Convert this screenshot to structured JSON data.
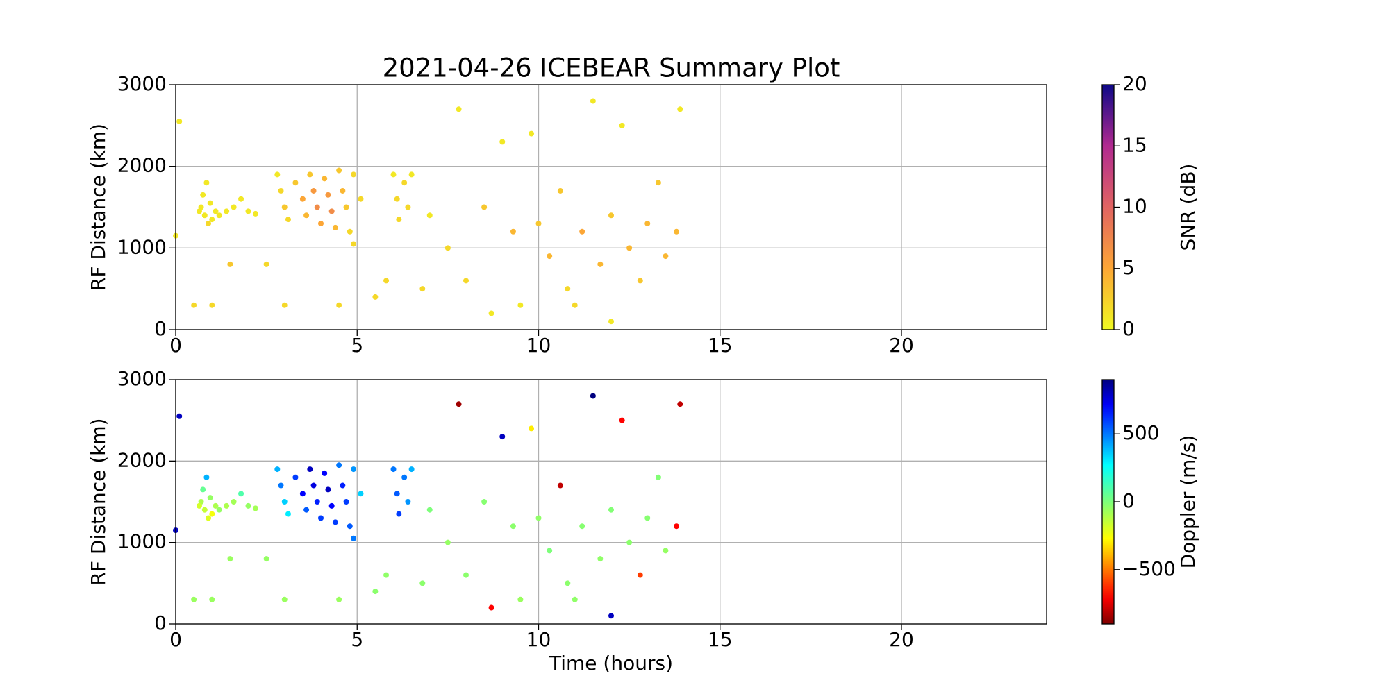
{
  "chart_data": [
    {
      "type": "scatter",
      "title": "2021-04-26 ICEBEAR Summary Plot",
      "ylabel": "RF Distance (km)",
      "xlim": [
        0,
        24
      ],
      "xticks": [
        0,
        5,
        10,
        15,
        20
      ],
      "ylim": [
        0,
        3000
      ],
      "yticks": [
        0,
        1000,
        2000,
        3000
      ],
      "grid": true,
      "x": [
        0.7,
        0.8,
        0.9,
        0.75,
        0.85,
        1.0,
        1.1,
        0.95,
        0.65,
        1.2,
        1.4,
        1.6,
        1.8,
        2.0,
        2.2,
        2.8,
        2.9,
        3.0,
        3.1,
        3.3,
        3.5,
        3.6,
        3.7,
        3.8,
        3.9,
        4.0,
        4.1,
        4.2,
        4.3,
        4.4,
        4.5,
        4.6,
        4.7,
        4.8,
        4.9,
        4.9,
        5.1,
        6.0,
        6.1,
        6.15,
        6.3,
        6.4,
        6.5,
        7.0,
        7.5,
        8.0,
        8.5,
        9.0,
        9.3,
        9.5,
        10.0,
        10.3,
        10.6,
        10.8,
        11.2,
        11.5,
        11.7,
        12.0,
        12.3,
        12.5,
        12.8,
        13.0,
        13.3,
        13.5,
        13.8,
        13.9,
        7.8,
        8.7,
        5.5,
        5.8,
        6.8,
        2.5,
        0.5,
        1.0,
        3.0,
        4.5,
        0.1,
        0.0,
        1.5,
        11.0,
        12.0,
        9.8
      ],
      "y": [
        1500,
        1400,
        1300,
        1650,
        1800,
        1350,
        1450,
        1550,
        1450,
        1400,
        1450,
        1500,
        1600,
        1450,
        1420,
        1900,
        1700,
        1500,
        1350,
        1800,
        1600,
        1400,
        1900,
        1700,
        1500,
        1300,
        1850,
        1650,
        1450,
        1250,
        1950,
        1700,
        1500,
        1200,
        1050,
        1900,
        1600,
        1900,
        1600,
        1350,
        1800,
        1500,
        1900,
        1400,
        1000,
        600,
        1500,
        2300,
        1200,
        300,
        1300,
        900,
        1700,
        500,
        1200,
        2800,
        800,
        1400,
        2500,
        1000,
        600,
        1300,
        1800,
        900,
        1200,
        2700,
        2700,
        200,
        400,
        600,
        500,
        800,
        300,
        300,
        300,
        300,
        2550,
        1150,
        800,
        300,
        100,
        2400
      ],
      "c": [
        1,
        1,
        2,
        1,
        1,
        1,
        1,
        1,
        1,
        1,
        1,
        1,
        1,
        1,
        1,
        1,
        2,
        3,
        2,
        3,
        5,
        4,
        3,
        6,
        7,
        5,
        4,
        6,
        7,
        4,
        3,
        4,
        3,
        2,
        2,
        2,
        2,
        1,
        2,
        2,
        2,
        2,
        1,
        1,
        2,
        2,
        3,
        1,
        4,
        1,
        3,
        4,
        3,
        2,
        5,
        1,
        4,
        3,
        1,
        4,
        3,
        4,
        3,
        4,
        4,
        1,
        1,
        1,
        2,
        2,
        2,
        2,
        2,
        2,
        2,
        2,
        1,
        1,
        3,
        2,
        1,
        1
      ],
      "colorbar": {
        "label": "SNR (dB)",
        "colormap": "plasma_r",
        "clim": [
          0,
          20
        ],
        "ticks": [
          0,
          5,
          10,
          15,
          20
        ]
      }
    },
    {
      "type": "scatter",
      "xlabel": "Time (hours)",
      "ylabel": "RF Distance (km)",
      "xlim": [
        0,
        24
      ],
      "xticks": [
        0,
        5,
        10,
        15,
        20
      ],
      "ylim": [
        0,
        3000
      ],
      "yticks": [
        0,
        1000,
        2000,
        3000
      ],
      "grid": true,
      "x": [
        0.7,
        0.8,
        0.9,
        0.75,
        0.85,
        1.0,
        1.1,
        0.95,
        0.65,
        1.2,
        1.4,
        1.6,
        1.8,
        2.0,
        2.2,
        2.8,
        2.9,
        3.0,
        3.1,
        3.3,
        3.5,
        3.6,
        3.7,
        3.8,
        3.9,
        4.0,
        4.1,
        4.2,
        4.3,
        4.4,
        4.5,
        4.6,
        4.7,
        4.8,
        4.9,
        4.9,
        5.1,
        6.0,
        6.1,
        6.15,
        6.3,
        6.4,
        6.5,
        7.0,
        7.5,
        8.0,
        8.5,
        9.0,
        9.3,
        9.5,
        10.0,
        10.3,
        10.6,
        10.8,
        11.2,
        11.5,
        11.7,
        12.0,
        12.3,
        12.5,
        12.8,
        13.0,
        13.3,
        13.5,
        13.8,
        13.9,
        7.8,
        8.7,
        5.5,
        5.8,
        6.8,
        2.5,
        0.5,
        1.0,
        3.0,
        4.5,
        0.1,
        0.0,
        1.5,
        11.0,
        12.0,
        9.8
      ],
      "y": [
        1500,
        1400,
        1300,
        1650,
        1800,
        1350,
        1450,
        1550,
        1450,
        1400,
        1450,
        1500,
        1600,
        1450,
        1420,
        1900,
        1700,
        1500,
        1350,
        1800,
        1600,
        1400,
        1900,
        1700,
        1500,
        1300,
        1850,
        1650,
        1450,
        1250,
        1950,
        1700,
        1500,
        1200,
        1050,
        1900,
        1600,
        1900,
        1600,
        1350,
        1800,
        1500,
        1900,
        1400,
        1000,
        600,
        1500,
        2300,
        1200,
        300,
        1300,
        900,
        1700,
        500,
        1200,
        2800,
        800,
        1400,
        2500,
        1000,
        600,
        1300,
        1800,
        900,
        1200,
        2700,
        2700,
        200,
        400,
        600,
        500,
        800,
        300,
        300,
        300,
        300,
        2550,
        1150,
        800,
        300,
        100,
        2400
      ],
      "c": [
        -100,
        -150,
        -200,
        50,
        400,
        -250,
        -100,
        -50,
        -180,
        -50,
        -100,
        -80,
        100,
        -50,
        -80,
        400,
        500,
        350,
        300,
        600,
        700,
        550,
        800,
        750,
        650,
        600,
        700,
        800,
        700,
        600,
        500,
        650,
        600,
        550,
        500,
        450,
        350,
        500,
        550,
        600,
        500,
        450,
        400,
        0,
        -50,
        -30,
        -20,
        800,
        -30,
        -60,
        -40,
        0,
        -800,
        -30,
        -20,
        900,
        -40,
        -10,
        -700,
        -30,
        -600,
        -20,
        -10,
        -50,
        -700,
        -800,
        -850,
        -700,
        -30,
        -40,
        -30,
        -50,
        -60,
        -60,
        -60,
        -60,
        800,
        800,
        -60,
        -40,
        800,
        -300
      ],
      "colorbar": {
        "label": "Doppler (m/s)",
        "colormap": "jet_r",
        "clim": [
          -900,
          900
        ],
        "ticks": [
          {
            "value": -500,
            "label": "−500"
          },
          0,
          500
        ]
      }
    }
  ]
}
